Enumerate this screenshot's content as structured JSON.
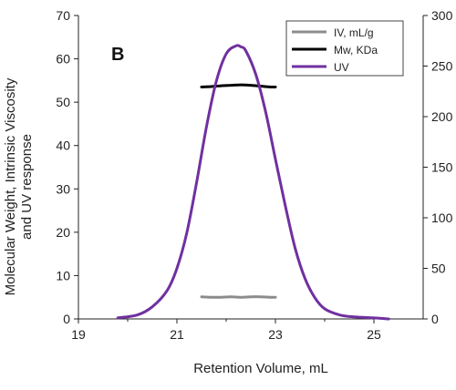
{
  "chart_data": {
    "type": "line",
    "panel_label": "B",
    "xlabel": "Retention Volume, mL",
    "ylabel_lines": [
      "Molecular Weight, Intrinsic Viscosity",
      "and UV response"
    ],
    "xlim": [
      19,
      26
    ],
    "ylim": [
      0,
      70
    ],
    "y2lim": [
      0,
      300
    ],
    "x_ticks": [
      19,
      21,
      23,
      25
    ],
    "y_ticks": [
      0,
      10,
      20,
      30,
      40,
      50,
      60,
      70
    ],
    "y2_ticks": [
      0,
      50,
      100,
      150,
      200,
      250,
      300
    ],
    "grid": false,
    "legend_position": "top-right",
    "series": [
      {
        "name": "IV, mL/g",
        "color": "#8c8c8c",
        "axis": "left",
        "x": [
          21.5,
          21.7,
          21.9,
          22.1,
          22.3,
          22.5,
          22.7,
          22.9,
          23.0
        ],
        "y": [
          5.1,
          5.0,
          5.0,
          5.1,
          5.0,
          5.1,
          5.1,
          5.0,
          5.0
        ]
      },
      {
        "name": "Mw, KDa",
        "color": "#000000",
        "axis": "left",
        "x": [
          21.5,
          21.7,
          21.9,
          22.1,
          22.3,
          22.5,
          22.7,
          22.9,
          23.0
        ],
        "y": [
          53.5,
          53.6,
          53.8,
          53.9,
          54.0,
          53.9,
          53.7,
          53.5,
          53.5
        ]
      },
      {
        "name": "UV",
        "color": "#7030a0",
        "axis": "right",
        "x": [
          19.8,
          20.2,
          20.5,
          20.8,
          21.0,
          21.2,
          21.4,
          21.6,
          21.8,
          22.0,
          22.2,
          22.3,
          22.4,
          22.6,
          22.8,
          23.0,
          23.2,
          23.4,
          23.6,
          23.8,
          24.0,
          24.3,
          24.6,
          25.0,
          25.3
        ],
        "y": [
          1,
          4,
          12,
          28,
          50,
          85,
          135,
          190,
          235,
          262,
          270,
          269,
          265,
          242,
          205,
          158,
          112,
          70,
          40,
          21,
          10,
          4,
          2,
          1,
          0
        ]
      }
    ]
  }
}
